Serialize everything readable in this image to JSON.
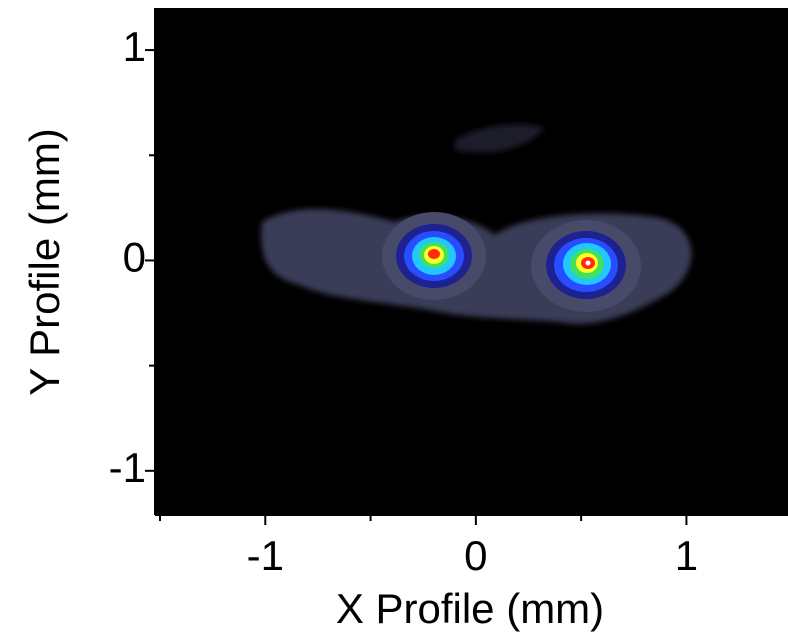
{
  "chart_data": {
    "type": "heatmap",
    "x_label": "X Profile (mm)",
    "y_label": "Y Profile (mm)",
    "xlim": [
      -1.5,
      1.48
    ],
    "ylim": [
      -1.21,
      1.2
    ],
    "xticks": [
      -1,
      0,
      1
    ],
    "yticks": [
      -1,
      0,
      1
    ],
    "x_minor_ticks": [
      -1.5,
      -0.5,
      0.5
    ],
    "y_minor_ticks": [
      -0.5,
      0.5
    ],
    "background": "#000000"
  }
}
